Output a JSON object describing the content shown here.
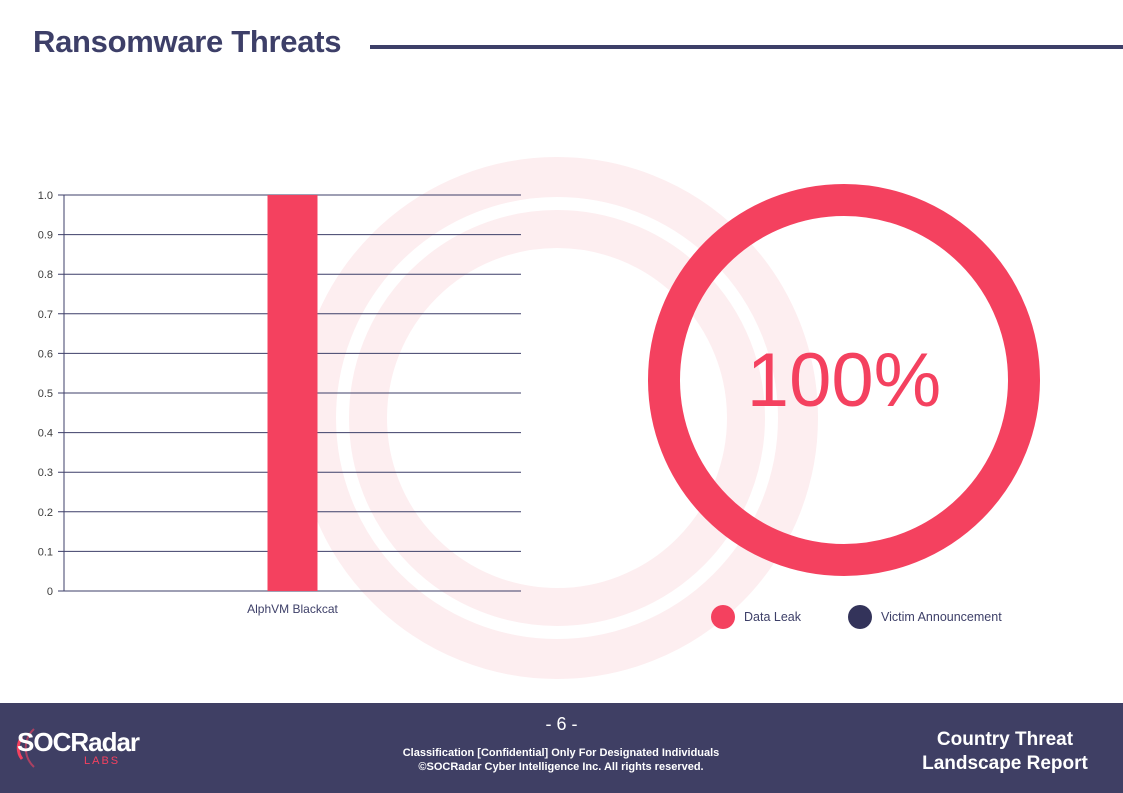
{
  "page": {
    "title": "Ransomware Threats"
  },
  "colors": {
    "accent": "#f4415f",
    "navy": "#3d3f68",
    "footer_bg": "#3f3f64"
  },
  "chart_data": [
    {
      "type": "bar",
      "categories": [
        "AlphVM Blackcat"
      ],
      "values": [
        1.0
      ],
      "ylim": [
        0,
        1.0
      ],
      "yticks": [
        "0",
        "0.1",
        "0.2",
        "0.3",
        "0.4",
        "0.5",
        "0.6",
        "0.7",
        "0.8",
        "0.9",
        "1.0"
      ],
      "grid": true,
      "color": "#f4415f"
    },
    {
      "type": "pie",
      "style": "donut",
      "categories": [
        "Data Leak",
        "Victim Announcement"
      ],
      "values": [
        100,
        0
      ],
      "colors": [
        "#f4415f",
        "#33335a"
      ],
      "center_label": "100%",
      "legend": "bottom"
    }
  ],
  "footer": {
    "page_number": "- 6 -",
    "classification_line1": "Classification [Confidential] Only For Designated Individuals",
    "classification_line2": "©SOCRadar Cyber Intelligence Inc. All rights reserved.",
    "report_title_line1": "Country Threat",
    "report_title_line2": "Landscape Report",
    "logo_text": "SOCRadar",
    "logo_subtext": "LABS"
  }
}
